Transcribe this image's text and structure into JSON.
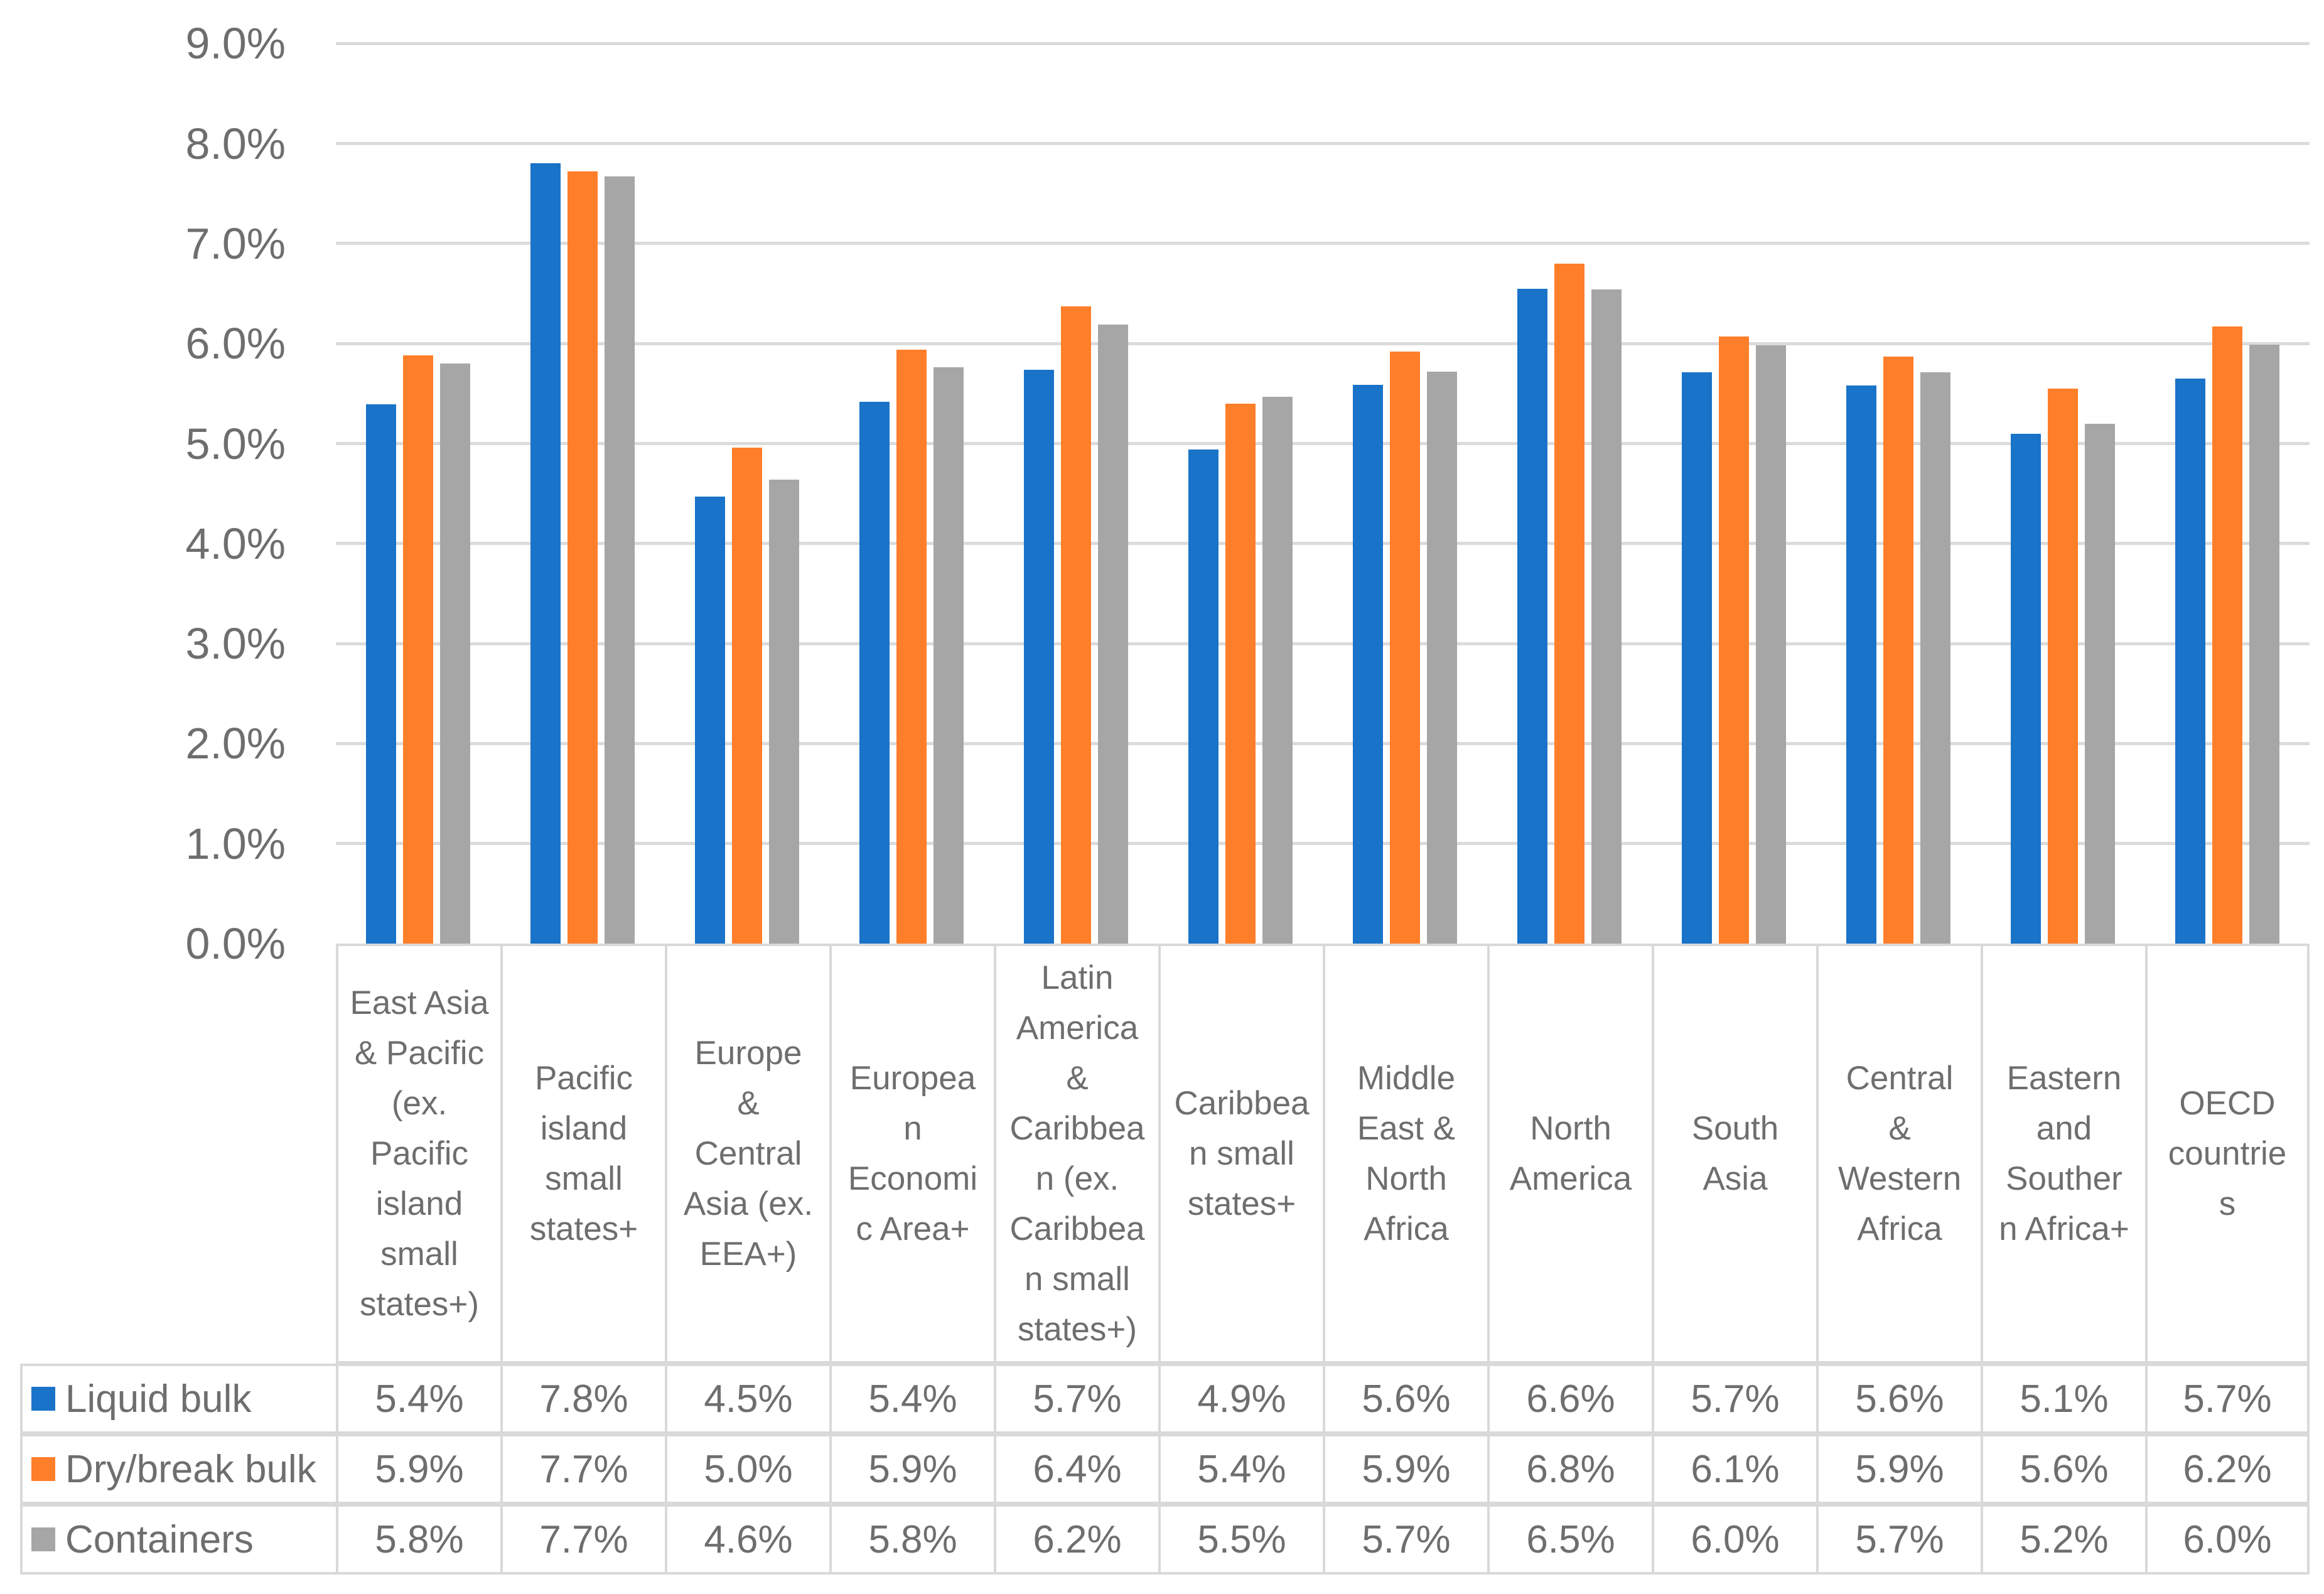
{
  "chart_data": {
    "type": "bar",
    "title": "",
    "y_axis": {
      "min": 0,
      "max": 9,
      "step": 1,
      "unit": "percent",
      "grid": true,
      "tick_labels": [
        "0.0%",
        "1.0%",
        "2.0%",
        "3.0%",
        "4.0%",
        "5.0%",
        "6.0%",
        "7.0%",
        "8.0%",
        "9.0%"
      ]
    },
    "legend_position": "table-left",
    "categories": [
      {
        "label": "East Asia & Pacific (ex. Pacific island small states+)",
        "wrapped": "East Asia\n& Pacific\n(ex.\nPacific\nisland\nsmall\nstates+)"
      },
      {
        "label": "Pacific island small states+",
        "wrapped": "Pacific\nisland\nsmall\nstates+"
      },
      {
        "label": "Europe & Central Asia (ex. EEA+)",
        "wrapped": "Europe\n&\nCentral\nAsia (ex.\nEEA+)"
      },
      {
        "label": "European Economic Area+",
        "wrapped": "Europea\nn\nEconomi\nc Area+"
      },
      {
        "label": "Latin America & Caribbean (ex. Caribbean small states+)",
        "wrapped": "Latin\nAmerica\n&\nCaribbea\nn (ex.\nCaribbea\nn small\nstates+)"
      },
      {
        "label": "Caribbean small states+",
        "wrapped": "Caribbea\nn small\nstates+"
      },
      {
        "label": "Middle East & North Africa",
        "wrapped": "Middle\nEast &\nNorth\nAfrica"
      },
      {
        "label": "North America",
        "wrapped": "North\nAmerica"
      },
      {
        "label": "South Asia",
        "wrapped": "South\nAsia"
      },
      {
        "label": "Central & Western Africa",
        "wrapped": "Central\n&\nWestern\nAfrica"
      },
      {
        "label": "Eastern and Southern Africa+",
        "wrapped": "Eastern\nand\nSouther\nn Africa+"
      },
      {
        "label": "OECD countries",
        "wrapped": "OECD\ncountrie\ns"
      }
    ],
    "series": [
      {
        "name": "Liquid bulk",
        "color": "#1973C8",
        "values": [
          5.39,
          7.8,
          4.47,
          5.42,
          5.74,
          4.94,
          5.59,
          6.55,
          5.71,
          5.58,
          5.1,
          5.65
        ],
        "table_labels": [
          "5.4%",
          "7.8%",
          "4.5%",
          "5.4%",
          "5.7%",
          "4.9%",
          "5.6%",
          "6.6%",
          "5.7%",
          "5.6%",
          "5.1%",
          "5.7%"
        ]
      },
      {
        "name": "Dry/break bulk",
        "color": "#FF7E29",
        "values": [
          5.88,
          7.72,
          4.96,
          5.94,
          6.37,
          5.4,
          5.92,
          6.8,
          6.07,
          5.87,
          5.55,
          6.17
        ],
        "table_labels": [
          "5.9%",
          "7.7%",
          "5.0%",
          "5.9%",
          "6.4%",
          "5.4%",
          "5.9%",
          "6.8%",
          "6.1%",
          "5.9%",
          "5.6%",
          "6.2%"
        ]
      },
      {
        "name": "Containers",
        "color": "#A6A6A6",
        "values": [
          5.8,
          7.67,
          4.64,
          5.76,
          6.19,
          5.47,
          5.72,
          6.54,
          5.98,
          5.71,
          5.2,
          5.99
        ],
        "table_labels": [
          "5.8%",
          "7.7%",
          "4.6%",
          "5.8%",
          "6.2%",
          "5.5%",
          "5.7%",
          "6.5%",
          "6.0%",
          "5.7%",
          "5.2%",
          "6.0%"
        ]
      }
    ],
    "colors": {
      "gridline": "#DBDBDB",
      "cell_border": "#D9D9D9",
      "text": "#6E6E6E",
      "background": "#FFFFFF"
    }
  }
}
